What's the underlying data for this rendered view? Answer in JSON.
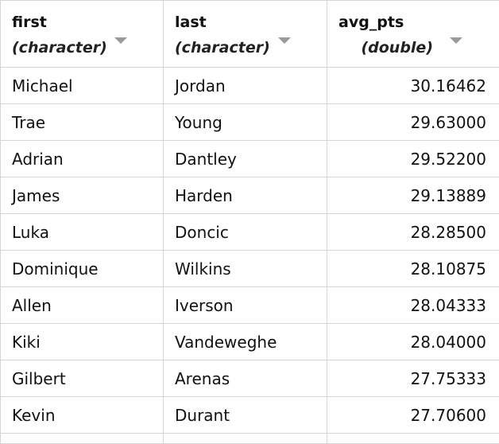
{
  "columns": [
    {
      "name": "first",
      "type": "(character)"
    },
    {
      "name": "last",
      "type": "(character)"
    },
    {
      "name": "avg_pts",
      "type": "(double)"
    }
  ],
  "rows": [
    {
      "first": "Michael",
      "last": "Jordan",
      "avg_pts": "30.16462"
    },
    {
      "first": "Trae",
      "last": "Young",
      "avg_pts": "29.63000"
    },
    {
      "first": "Adrian",
      "last": "Dantley",
      "avg_pts": "29.52200"
    },
    {
      "first": "James",
      "last": "Harden",
      "avg_pts": "29.13889"
    },
    {
      "first": "Luka",
      "last": "Doncic",
      "avg_pts": "28.28500"
    },
    {
      "first": "Dominique",
      "last": "Wilkins",
      "avg_pts": "28.10875"
    },
    {
      "first": "Allen",
      "last": "Iverson",
      "avg_pts": "28.04333"
    },
    {
      "first": "Kiki",
      "last": "Vandeweghe",
      "avg_pts": "28.04000"
    },
    {
      "first": "Gilbert",
      "last": "Arenas",
      "avg_pts": "27.75333"
    },
    {
      "first": "Kevin",
      "last": "Durant",
      "avg_pts": "27.70600"
    }
  ],
  "icons": {
    "sort": "sort-descending-icon"
  },
  "colors": {
    "border": "#d6d6d6",
    "sort_icon": "#9a9a9a"
  }
}
